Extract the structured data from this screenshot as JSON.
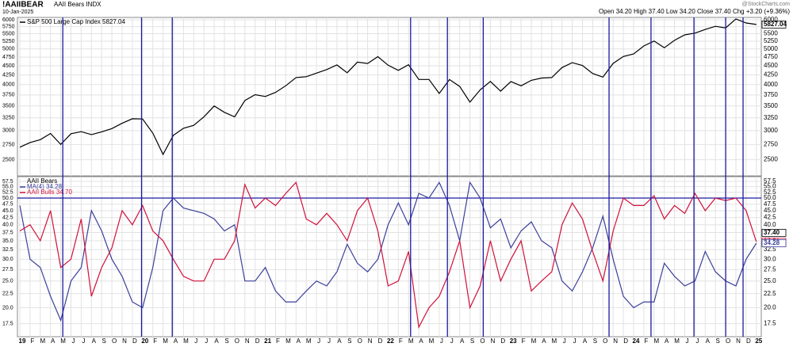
{
  "header": {
    "symbol": "!AAIIBEAR",
    "name": "AAII Bears INDX",
    "date": "10-Jan-2025",
    "quote": "Open 34.20  High 37.40  Low 34.20  Close 37.40  Chg +3.20 (+9.36%)",
    "credit": "@StockCharts.com"
  },
  "chart_data": [
    {
      "type": "line",
      "log_scale": true,
      "grid": true,
      "ylim": [
        2260,
        6090
      ],
      "yticks": [
        2500,
        2750,
        3000,
        3250,
        3500,
        3750,
        4000,
        4250,
        4500,
        4750,
        5000,
        5250,
        5500,
        5750,
        6000
      ],
      "series": [
        {
          "name": "S&P 500 Large Cap Index 5827.04",
          "color": "#000000",
          "values": [
            2704,
            2784,
            2834,
            2946,
            2752,
            2942,
            2980,
            2926,
            2977,
            3038,
            3141,
            3231,
            3226,
            2954,
            2585,
            2912,
            3044,
            3100,
            3271,
            3500,
            3363,
            3270,
            3622,
            3756,
            3714,
            3811,
            3973,
            4181,
            4204,
            4298,
            4395,
            4523,
            4308,
            4605,
            4567,
            4766,
            4516,
            4374,
            4530,
            4132,
            4132,
            3785,
            4130,
            3955,
            3586,
            3872,
            4080,
            3840,
            4077,
            3970,
            4109,
            4169,
            4180,
            4450,
            4589,
            4508,
            4288,
            4194,
            4568,
            4770,
            4846,
            5096,
            5254,
            5036,
            5278,
            5460,
            5522,
            5648,
            5762,
            5705,
            6032,
            5882,
            5827
          ]
        }
      ],
      "badges": [
        {
          "value": 5827.04,
          "label": "5827.04",
          "color": "#000000"
        }
      ]
    },
    {
      "type": "line",
      "log_scale": true,
      "grid": true,
      "title": "AAII Bears",
      "categories": [
        "19",
        "F",
        "M",
        "A",
        "M",
        "J",
        "J",
        "A",
        "S",
        "O",
        "N",
        "D",
        "20",
        "F",
        "M",
        "A",
        "M",
        "J",
        "J",
        "A",
        "S",
        "O",
        "N",
        "D",
        "21",
        "F",
        "M",
        "A",
        "M",
        "J",
        "J",
        "A",
        "S",
        "O",
        "N",
        "D",
        "22",
        "F",
        "M",
        "A",
        "M",
        "J",
        "J",
        "A",
        "S",
        "O",
        "N",
        "D",
        "23",
        "F",
        "M",
        "A",
        "M",
        "J",
        "J",
        "A",
        "S",
        "O",
        "N",
        "D",
        "24",
        "F",
        "M",
        "A",
        "M",
        "J",
        "J",
        "A",
        "S",
        "O",
        "N",
        "D",
        "25"
      ],
      "ylim": [
        15.7,
        59.8
      ],
      "yticks": [
        17.5,
        {
          "value": 20,
          "label": "20.0"
        },
        22.5,
        {
          "value": 25,
          "label": "25.0"
        },
        27.5,
        {
          "value": 30,
          "label": "30.0"
        },
        32.5,
        {
          "value": 35,
          "label": "35.0"
        },
        37.5,
        {
          "value": 40,
          "label": "40.0"
        },
        42.5,
        {
          "value": 45,
          "label": "45.0"
        },
        47.5,
        {
          "value": 50,
          "label": "50.0"
        },
        52.5,
        {
          "value": 55,
          "label": "55.0"
        },
        57.5
      ],
      "hline": 50,
      "vlines": [
        4.2,
        11.9,
        14.9,
        38.2,
        41.8,
        45.3,
        57.6,
        61.7,
        65.9,
        69,
        70.7
      ],
      "series": [
        {
          "name": "MA(4) 34.28",
          "color": "#3b3f9a",
          "values": [
            47,
            30,
            28,
            22,
            18,
            25,
            28,
            45,
            38,
            30,
            26,
            21,
            20,
            28,
            45,
            50,
            46,
            45,
            44,
            42,
            38,
            40,
            25,
            25,
            28,
            23,
            21,
            21,
            23,
            25,
            24,
            27,
            34,
            29,
            27,
            30,
            40,
            48,
            40,
            52,
            50,
            57,
            47,
            35,
            57,
            50,
            39,
            42,
            33,
            38,
            41,
            35,
            33,
            25,
            23,
            27,
            33,
            43,
            30,
            22,
            20,
            21,
            21,
            29,
            26,
            24,
            25,
            32,
            27,
            25,
            24,
            30,
            34.28
          ]
        },
        {
          "name": "AAII Bulls 34.70",
          "color": "#d0103a",
          "values": [
            38,
            40,
            35,
            45,
            28,
            30,
            42,
            22,
            28,
            33,
            45,
            40,
            47,
            38,
            35,
            30,
            26,
            25,
            25,
            30,
            30,
            35,
            56,
            46,
            50,
            47,
            52,
            57,
            42,
            40,
            44,
            40,
            35,
            45,
            50,
            38,
            24,
            25,
            32,
            17,
            20,
            22,
            27,
            35,
            20,
            24,
            35,
            25,
            30,
            35,
            23,
            25,
            27,
            40,
            48,
            42,
            32,
            25,
            38,
            50,
            47,
            47,
            51,
            42,
            47,
            44,
            52,
            45,
            50,
            49,
            50,
            45,
            34.7
          ]
        }
      ],
      "badges": [
        {
          "value": 34.7,
          "label": "34.70",
          "color": "#d0103a"
        },
        {
          "value": 37.4,
          "label": "37.40",
          "color": "#000000"
        },
        {
          "value": 34.28,
          "label": "34.28",
          "color": "#3b3f9a"
        }
      ]
    }
  ]
}
